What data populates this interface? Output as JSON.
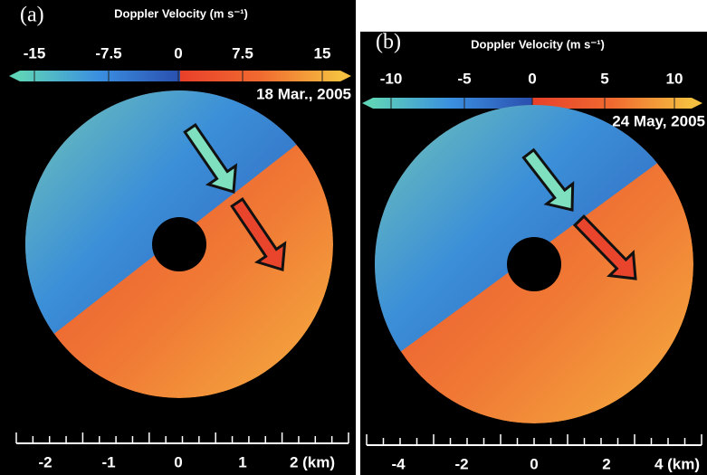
{
  "panels": [
    {
      "label": "(a)",
      "colorbar_title": "Doppler Velocity (m s⁻¹)",
      "colorbar_ticks": [
        "-15",
        "-7.5",
        "0",
        "7.5",
        "15"
      ],
      "date": "18 Mar., 2005",
      "scale_ticks": [
        "-2",
        "-1",
        "0",
        "1",
        "2 (km)"
      ]
    },
    {
      "label": "(b)",
      "colorbar_title": "Doppler Velocity (m s⁻¹)",
      "colorbar_ticks": [
        "-10",
        "-5",
        "0",
        "5",
        "10"
      ],
      "date": "24 May, 2005",
      "scale_ticks": [
        "-4",
        "-2",
        "0",
        "2",
        "4 (km)"
      ]
    }
  ]
}
